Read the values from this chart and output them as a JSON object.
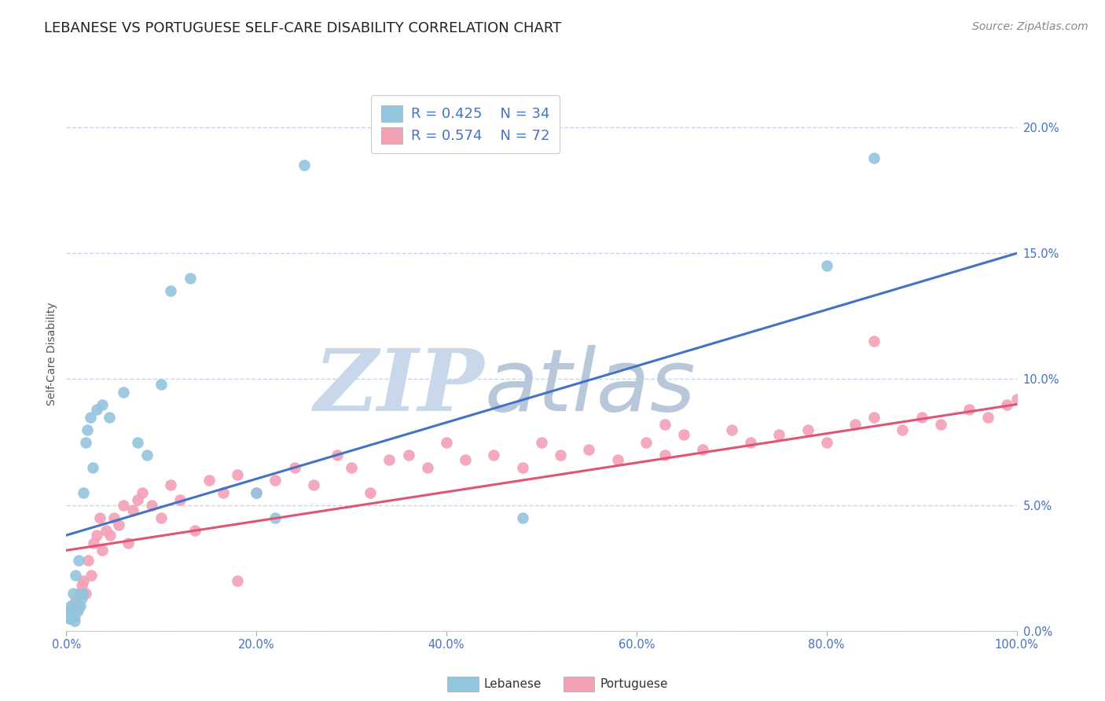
{
  "title": "LEBANESE VS PORTUGUESE SELF-CARE DISABILITY CORRELATION CHART",
  "source": "Source: ZipAtlas.com",
  "ylabel": "Self-Care Disability",
  "xlabel_ticks": [
    "0.0%",
    "20.0%",
    "40.0%",
    "60.0%",
    "80.0%",
    "100.0%"
  ],
  "ylabel_ticks": [
    "0.0%",
    "5.0%",
    "10.0%",
    "15.0%",
    "20.0%"
  ],
  "xlim": [
    0,
    100
  ],
  "ylim": [
    0,
    22
  ],
  "watermark_zip": "ZIP",
  "watermark_atlas": "atlas",
  "legend_r1": "R = 0.425",
  "legend_n1": "N = 34",
  "legend_r2": "R = 0.574",
  "legend_n2": "N = 72",
  "blue_color": "#92c5de",
  "pink_color": "#f4a0b5",
  "blue_line_color": "#4472c4",
  "pink_line_color": "#e05575",
  "lebanese_x": [
    0.3,
    0.4,
    0.5,
    0.6,
    0.7,
    0.8,
    0.9,
    1.0,
    1.1,
    1.2,
    1.3,
    1.5,
    1.6,
    1.7,
    1.8,
    2.0,
    2.2,
    2.5,
    2.8,
    3.2,
    3.8,
    4.5,
    6.0,
    7.5,
    8.5,
    10.0,
    11.0,
    13.0,
    20.0,
    22.0,
    25.0,
    48.0,
    80.0,
    85.0
  ],
  "lebanese_y": [
    0.5,
    0.8,
    1.0,
    0.6,
    1.5,
    0.9,
    0.4,
    2.2,
    1.1,
    0.8,
    2.8,
    1.0,
    1.3,
    1.5,
    5.5,
    7.5,
    8.0,
    8.5,
    6.5,
    8.8,
    9.0,
    8.5,
    9.5,
    7.5,
    7.0,
    9.8,
    13.5,
    14.0,
    5.5,
    4.5,
    18.5,
    4.5,
    14.5,
    18.8
  ],
  "portuguese_x": [
    0.3,
    0.5,
    0.7,
    0.9,
    1.0,
    1.2,
    1.4,
    1.6,
    1.8,
    2.0,
    2.3,
    2.6,
    2.9,
    3.2,
    3.5,
    3.8,
    4.2,
    4.6,
    5.0,
    5.5,
    6.0,
    6.5,
    7.0,
    7.5,
    8.0,
    9.0,
    10.0,
    11.0,
    12.0,
    13.5,
    15.0,
    16.5,
    18.0,
    20.0,
    22.0,
    24.0,
    26.0,
    28.5,
    30.0,
    32.0,
    34.0,
    36.0,
    38.0,
    40.0,
    42.0,
    45.0,
    48.0,
    50.0,
    52.0,
    55.0,
    58.0,
    61.0,
    63.0,
    65.0,
    67.0,
    70.0,
    72.0,
    75.0,
    78.0,
    80.0,
    83.0,
    85.0,
    88.0,
    90.0,
    92.0,
    95.0,
    97.0,
    99.0,
    100.0,
    63.0,
    85.0,
    18.0
  ],
  "portuguese_y": [
    0.8,
    0.5,
    1.0,
    0.6,
    1.2,
    0.9,
    1.5,
    1.8,
    2.0,
    1.5,
    2.8,
    2.2,
    3.5,
    3.8,
    4.5,
    3.2,
    4.0,
    3.8,
    4.5,
    4.2,
    5.0,
    3.5,
    4.8,
    5.2,
    5.5,
    5.0,
    4.5,
    5.8,
    5.2,
    4.0,
    6.0,
    5.5,
    6.2,
    5.5,
    6.0,
    6.5,
    5.8,
    7.0,
    6.5,
    5.5,
    6.8,
    7.0,
    6.5,
    7.5,
    6.8,
    7.0,
    6.5,
    7.5,
    7.0,
    7.2,
    6.8,
    7.5,
    7.0,
    7.8,
    7.2,
    8.0,
    7.5,
    7.8,
    8.0,
    7.5,
    8.2,
    8.5,
    8.0,
    8.5,
    8.2,
    8.8,
    8.5,
    9.0,
    9.2,
    8.2,
    11.5,
    2.0
  ],
  "blue_trendline_x": [
    0,
    100
  ],
  "blue_trendline_y": [
    3.8,
    15.0
  ],
  "pink_trendline_x": [
    0,
    100
  ],
  "pink_trendline_y": [
    3.2,
    9.0
  ],
  "title_fontsize": 13,
  "source_fontsize": 10,
  "axis_label_fontsize": 10,
  "tick_fontsize": 10.5,
  "legend_fontsize": 13,
  "background_color": "#ffffff",
  "grid_color": "#c8d8ea",
  "watermark_color_zip": "#c8d8ea",
  "watermark_color_atlas": "#b8c8da",
  "watermark_fontsize": 80
}
